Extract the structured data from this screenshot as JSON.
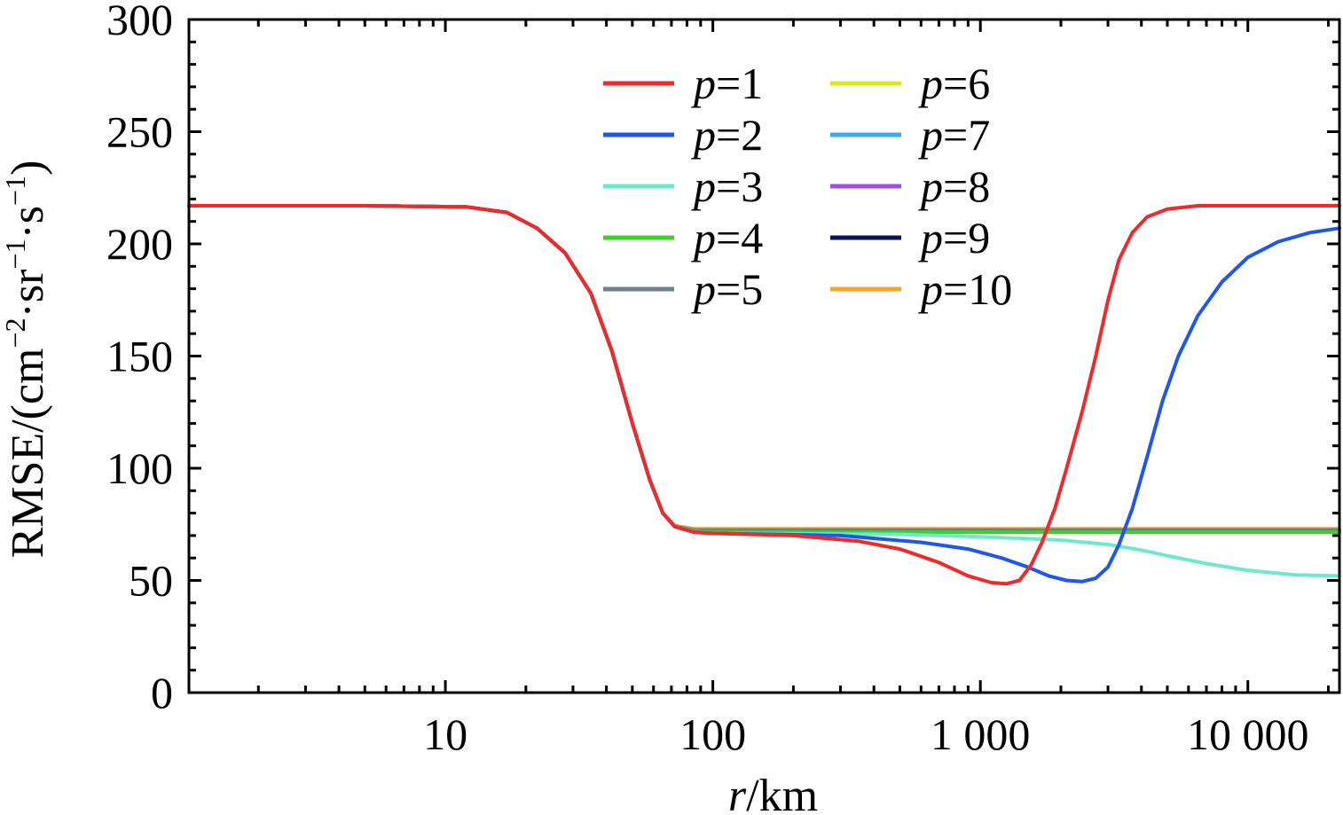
{
  "chart_data": {
    "type": "line",
    "title": "",
    "xlabel": {
      "var": "r",
      "unit": "/km"
    },
    "ylabel": {
      "prefix": "RMSE/(cm",
      "exp1": "−2",
      "mid1": "·sr",
      "exp2": "−1",
      "mid2": "·s",
      "exp3": "−1",
      "suffix": ")"
    },
    "xscale": "log",
    "xlim": [
      1.1,
      22000
    ],
    "ylim": [
      0,
      300
    ],
    "yticks": [
      0,
      50,
      100,
      150,
      200,
      250,
      300
    ],
    "ytick_labels": [
      "0",
      "50",
      "100",
      "150",
      "200",
      "250",
      "300"
    ],
    "xticks": [
      10,
      100,
      1000,
      10000
    ],
    "xtick_labels": [
      "10",
      "100",
      "1 000",
      "10 000"
    ],
    "legend_position": "top-center",
    "legend_var": "p",
    "series": [
      {
        "name": "p=1",
        "label": "=1",
        "color": "#ee2a2a",
        "width": 4,
        "points": [
          [
            1.1,
            217
          ],
          [
            5,
            217
          ],
          [
            12,
            216.5
          ],
          [
            17,
            214
          ],
          [
            22,
            207
          ],
          [
            28,
            196
          ],
          [
            35,
            178
          ],
          [
            42,
            152
          ],
          [
            50,
            120
          ],
          [
            58,
            95
          ],
          [
            65,
            80
          ],
          [
            72,
            74
          ],
          [
            85,
            71.5
          ],
          [
            100,
            71
          ],
          [
            200,
            70
          ],
          [
            350,
            67.5
          ],
          [
            500,
            64
          ],
          [
            700,
            58
          ],
          [
            900,
            52
          ],
          [
            1100,
            49
          ],
          [
            1250,
            48.5
          ],
          [
            1400,
            50
          ],
          [
            1550,
            57
          ],
          [
            1700,
            67
          ],
          [
            1900,
            82
          ],
          [
            2100,
            100
          ],
          [
            2400,
            125
          ],
          [
            2700,
            150
          ],
          [
            3000,
            175
          ],
          [
            3300,
            193
          ],
          [
            3700,
            205
          ],
          [
            4200,
            212
          ],
          [
            5000,
            215.5
          ],
          [
            6500,
            217
          ],
          [
            10000,
            217
          ],
          [
            22000,
            217
          ]
        ]
      },
      {
        "name": "p=2",
        "label": "=2",
        "color": "#1f57e6",
        "width": 4,
        "points": [
          [
            1.1,
            217
          ],
          [
            5,
            217
          ],
          [
            12,
            216.5
          ],
          [
            17,
            214
          ],
          [
            22,
            207
          ],
          [
            28,
            196
          ],
          [
            35,
            178
          ],
          [
            42,
            152
          ],
          [
            50,
            120
          ],
          [
            58,
            95
          ],
          [
            65,
            80
          ],
          [
            72,
            74
          ],
          [
            85,
            71.5
          ],
          [
            100,
            71
          ],
          [
            300,
            70
          ],
          [
            600,
            67
          ],
          [
            900,
            64
          ],
          [
            1200,
            60
          ],
          [
            1500,
            56
          ],
          [
            1800,
            52
          ],
          [
            2100,
            50
          ],
          [
            2400,
            49.5
          ],
          [
            2700,
            51
          ],
          [
            3000,
            56
          ],
          [
            3300,
            66
          ],
          [
            3700,
            82
          ],
          [
            4200,
            105
          ],
          [
            4800,
            130
          ],
          [
            5500,
            150
          ],
          [
            6500,
            168
          ],
          [
            8000,
            183
          ],
          [
            10000,
            194
          ],
          [
            13000,
            201
          ],
          [
            17000,
            205
          ],
          [
            22000,
            207
          ]
        ]
      },
      {
        "name": "p=3",
        "label": "=3",
        "color": "#6fe8cc",
        "width": 4,
        "points": [
          [
            1.1,
            217
          ],
          [
            5,
            217
          ],
          [
            12,
            216.5
          ],
          [
            17,
            214
          ],
          [
            22,
            207
          ],
          [
            28,
            196
          ],
          [
            35,
            178
          ],
          [
            42,
            152
          ],
          [
            50,
            120
          ],
          [
            58,
            95
          ],
          [
            65,
            80
          ],
          [
            72,
            74
          ],
          [
            85,
            71.5
          ],
          [
            100,
            71
          ],
          [
            500,
            70.5
          ],
          [
            1000,
            69.5
          ],
          [
            2000,
            68
          ],
          [
            3000,
            66
          ],
          [
            4000,
            63.5
          ],
          [
            5000,
            61
          ],
          [
            7000,
            57.5
          ],
          [
            10000,
            54.5
          ],
          [
            15000,
            52.5
          ],
          [
            22000,
            52
          ]
        ]
      },
      {
        "name": "p=4",
        "label": "=4",
        "color": "#3fd02a",
        "width": 4,
        "points": [
          [
            1.1,
            217
          ],
          [
            5,
            217
          ],
          [
            12,
            216.5
          ],
          [
            17,
            214
          ],
          [
            22,
            207
          ],
          [
            28,
            196
          ],
          [
            35,
            178
          ],
          [
            42,
            152
          ],
          [
            50,
            120
          ],
          [
            58,
            95
          ],
          [
            65,
            80
          ],
          [
            72,
            74
          ],
          [
            85,
            72
          ],
          [
            100,
            71.5
          ],
          [
            1000,
            71.5
          ],
          [
            22000,
            71.5
          ]
        ]
      },
      {
        "name": "p=5",
        "label": "=5",
        "color": "#6f7f8c",
        "width": 4,
        "points": [
          [
            1.1,
            217
          ],
          [
            5,
            217
          ],
          [
            12,
            216.5
          ],
          [
            17,
            214
          ],
          [
            22,
            207
          ],
          [
            28,
            196
          ],
          [
            35,
            178
          ],
          [
            42,
            152
          ],
          [
            50,
            120
          ],
          [
            58,
            95
          ],
          [
            65,
            80
          ],
          [
            72,
            74
          ],
          [
            85,
            72.5
          ],
          [
            100,
            72.5
          ],
          [
            1000,
            72.5
          ],
          [
            22000,
            72.5
          ]
        ]
      },
      {
        "name": "p=6",
        "label": "=6",
        "color": "#d6ec22",
        "width": 4,
        "points": [
          [
            1.1,
            217
          ],
          [
            5,
            217
          ],
          [
            12,
            216.5
          ],
          [
            17,
            214
          ],
          [
            22,
            207
          ],
          [
            28,
            196
          ],
          [
            35,
            178
          ],
          [
            42,
            152
          ],
          [
            50,
            120
          ],
          [
            58,
            95
          ],
          [
            65,
            80
          ],
          [
            72,
            74
          ],
          [
            85,
            72.5
          ],
          [
            100,
            72.5
          ],
          [
            22000,
            72.5
          ]
        ]
      },
      {
        "name": "p=7",
        "label": "=7",
        "color": "#3ea8f0",
        "width": 4,
        "points": [
          [
            1.1,
            217
          ],
          [
            5,
            217
          ],
          [
            12,
            216.5
          ],
          [
            17,
            214
          ],
          [
            22,
            207
          ],
          [
            28,
            196
          ],
          [
            35,
            178
          ],
          [
            42,
            152
          ],
          [
            50,
            120
          ],
          [
            58,
            95
          ],
          [
            65,
            80
          ],
          [
            72,
            74
          ],
          [
            85,
            72.5
          ],
          [
            100,
            72.5
          ],
          [
            22000,
            72.5
          ]
        ]
      },
      {
        "name": "p=8",
        "label": "=8",
        "color": "#9b50e0",
        "width": 4,
        "points": [
          [
            1.1,
            217
          ],
          [
            5,
            217
          ],
          [
            12,
            216.5
          ],
          [
            17,
            214
          ],
          [
            22,
            207
          ],
          [
            28,
            196
          ],
          [
            35,
            178
          ],
          [
            42,
            152
          ],
          [
            50,
            120
          ],
          [
            58,
            95
          ],
          [
            65,
            80
          ],
          [
            72,
            74
          ],
          [
            85,
            72.5
          ],
          [
            100,
            72.5
          ],
          [
            22000,
            72.5
          ]
        ]
      },
      {
        "name": "p=9",
        "label": "=9",
        "color": "#0a1260",
        "width": 4,
        "points": [
          [
            1.1,
            217
          ],
          [
            5,
            217
          ],
          [
            12,
            216.5
          ],
          [
            17,
            214
          ],
          [
            22,
            207
          ],
          [
            28,
            196
          ],
          [
            35,
            178
          ],
          [
            42,
            152
          ],
          [
            50,
            120
          ],
          [
            58,
            95
          ],
          [
            65,
            80
          ],
          [
            72,
            74
          ],
          [
            85,
            72.5
          ],
          [
            100,
            72.5
          ],
          [
            22000,
            72.5
          ]
        ]
      },
      {
        "name": "p=10",
        "label": "=10",
        "color": "#f5a52a",
        "width": 4,
        "points": [
          [
            1.1,
            217
          ],
          [
            5,
            217
          ],
          [
            12,
            216.5
          ],
          [
            17,
            214
          ],
          [
            22,
            207
          ],
          [
            28,
            196
          ],
          [
            35,
            178
          ],
          [
            42,
            152
          ],
          [
            50,
            120
          ],
          [
            58,
            95
          ],
          [
            65,
            80
          ],
          [
            72,
            74.5
          ],
          [
            85,
            73
          ],
          [
            100,
            73
          ],
          [
            22000,
            73
          ]
        ]
      }
    ]
  }
}
